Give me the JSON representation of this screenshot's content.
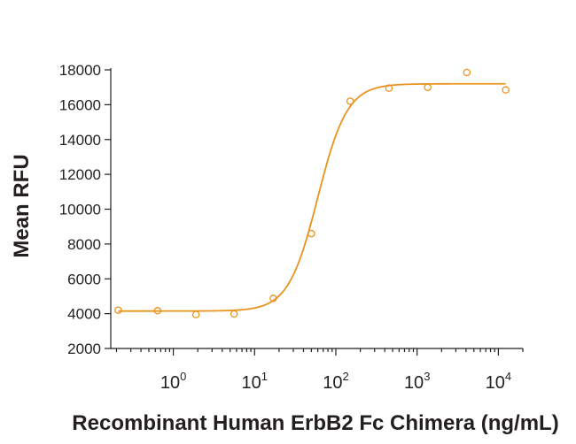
{
  "chart_data": {
    "type": "scatter",
    "title": "",
    "xlabel": "Recombinant Human ErbB2 Fc Chimera (ng/mL)",
    "ylabel": "Mean RFU",
    "x_scale": "log",
    "xlim": [
      0.17,
      20000
    ],
    "ylim": [
      2000,
      18000
    ],
    "y_ticks": [
      "2000",
      "4000",
      "6000",
      "8000",
      "10000",
      "12000",
      "14000",
      "16000",
      "18000"
    ],
    "x_ticks": [
      {
        "base": "10",
        "exp": "0"
      },
      {
        "base": "10",
        "exp": "1"
      },
      {
        "base": "10",
        "exp": "2"
      },
      {
        "base": "10",
        "exp": "3"
      },
      {
        "base": "10",
        "exp": "4"
      }
    ],
    "grid": false,
    "color": "#e8941f",
    "series": [
      {
        "points": [
          {
            "x": 0.21,
            "y": 4200
          },
          {
            "x": 0.64,
            "y": 4170
          },
          {
            "x": 1.9,
            "y": 3950
          },
          {
            "x": 5.6,
            "y": 3980
          },
          {
            "x": 17,
            "y": 4880
          },
          {
            "x": 50,
            "y": 8600
          },
          {
            "x": 150,
            "y": 16200
          },
          {
            "x": 450,
            "y": 16950
          },
          {
            "x": 1350,
            "y": 17000
          },
          {
            "x": 4100,
            "y": 17850
          },
          {
            "x": 12300,
            "y": 16850
          }
        ]
      }
    ],
    "fit": {
      "bottom": 4150,
      "top": 17200,
      "ec50": 60,
      "hill": 2.4
    }
  }
}
